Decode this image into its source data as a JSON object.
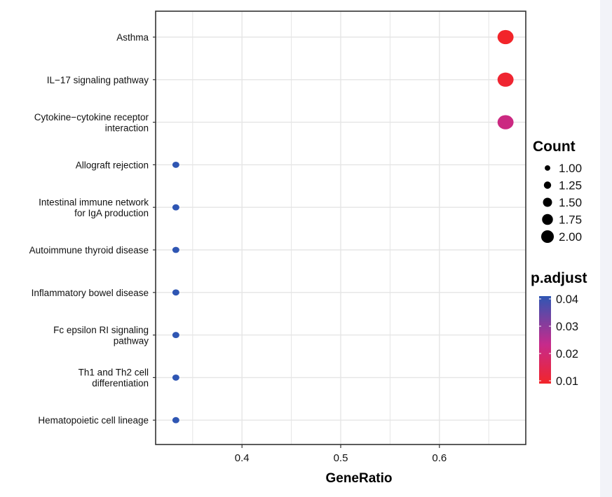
{
  "chart_data": {
    "type": "scatter",
    "title": "",
    "xlabel": "GeneRatio",
    "ylabel": "",
    "xlim": [
      0.3125,
      0.6875
    ],
    "x_ticks": [
      0.4,
      0.5,
      0.6
    ],
    "x_tick_labels": [
      "0.4",
      "0.5",
      "0.6"
    ],
    "grid": true,
    "categories": [
      "Asthma",
      "IL−17 signaling pathway",
      "Cytokine−cytokine receptor\ninteraction",
      "Allograft rejection",
      "Intestinal immune network\nfor IgA production",
      "Autoimmune thyroid disease",
      "Inflammatory bowel disease",
      "Fc epsilon RI signaling\npathway",
      "Th1 and Th2 cell\ndifferentiation",
      "Hematopoietic cell lineage"
    ],
    "points": [
      {
        "term": "Asthma",
        "gene_ratio": 0.667,
        "count": 2,
        "p_adjust": 0.01
      },
      {
        "term": "IL−17 signaling pathway",
        "gene_ratio": 0.667,
        "count": 2,
        "p_adjust": 0.011
      },
      {
        "term": "Cytokine−cytokine receptor interaction",
        "gene_ratio": 0.667,
        "count": 2,
        "p_adjust": 0.022
      },
      {
        "term": "Allograft rejection",
        "gene_ratio": 0.333,
        "count": 1,
        "p_adjust": 0.04
      },
      {
        "term": "Intestinal immune network for IgA production",
        "gene_ratio": 0.333,
        "count": 1,
        "p_adjust": 0.04
      },
      {
        "term": "Autoimmune thyroid disease",
        "gene_ratio": 0.333,
        "count": 1,
        "p_adjust": 0.04
      },
      {
        "term": "Inflammatory bowel disease",
        "gene_ratio": 0.333,
        "count": 1,
        "p_adjust": 0.04
      },
      {
        "term": "Fc epsilon RI signaling pathway",
        "gene_ratio": 0.333,
        "count": 1,
        "p_adjust": 0.04
      },
      {
        "term": "Th1 and Th2 cell differentiation",
        "gene_ratio": 0.333,
        "count": 1,
        "p_adjust": 0.04
      },
      {
        "term": "Hematopoietic cell lineage",
        "gene_ratio": 0.333,
        "count": 1,
        "p_adjust": 0.04
      }
    ],
    "size_legend": {
      "title": "Count",
      "values": [
        1.0,
        1.25,
        1.5,
        1.75,
        2.0
      ],
      "labels": [
        "1.00",
        "1.25",
        "1.50",
        "1.75",
        "2.00"
      ]
    },
    "color_legend": {
      "title": "p.adjust",
      "range": [
        0.01,
        0.04
      ],
      "ticks": [
        0.04,
        0.03,
        0.02,
        0.01
      ],
      "tick_labels": [
        "0.04",
        "0.03",
        "0.02",
        "0.01"
      ],
      "low_color": "#f2252a",
      "mid_color": "#c62a8c",
      "high_color": "#2f56b3"
    },
    "legend_placement": "right",
    "colors": {
      "grid": "#e5e5e5",
      "panel_border": "#333333",
      "point_outline": "none"
    }
  }
}
